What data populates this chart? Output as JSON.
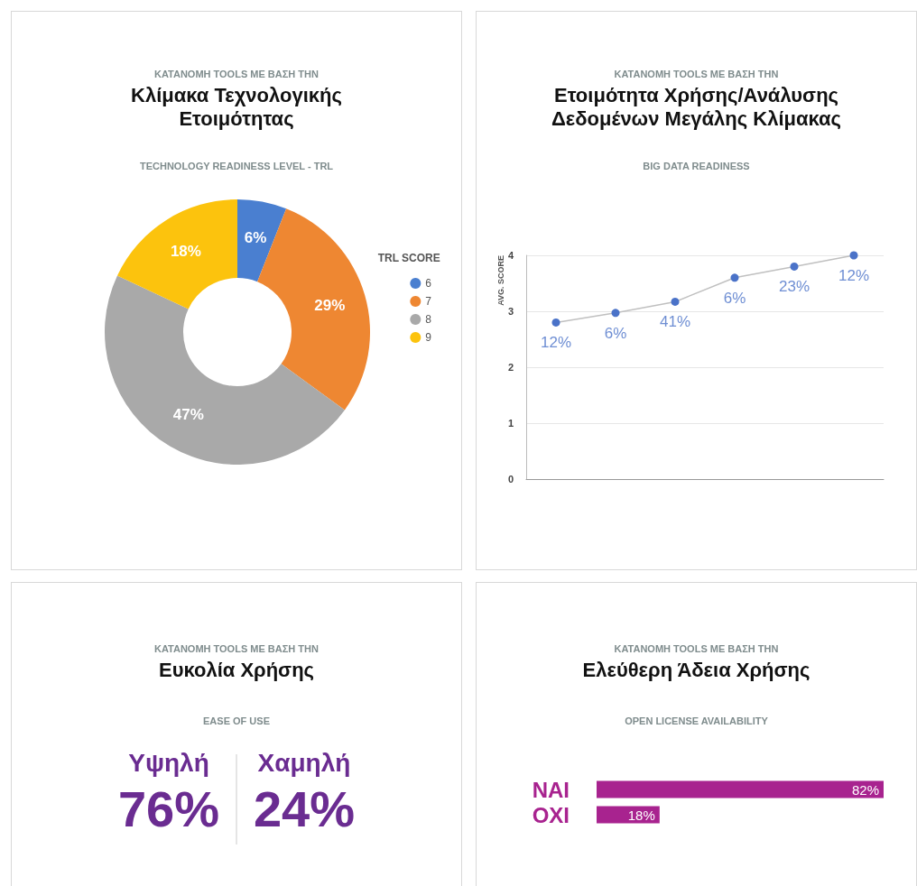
{
  "chart_data": [
    {
      "type": "donut",
      "annotations": [
        "ΚΑΤΑΝΟΜΗ TOOLS ΜΕ ΒΑΣΗ ΤΗΝ"
      ],
      "title": "Κλίμακα Τεχνολογικής Ετοιμότητας",
      "subtitle": "TECHNOLOGY READINESS LEVEL - TRL",
      "legend_title": "TRL SCORE",
      "legend": "right",
      "categories": [
        "6",
        "7",
        "8",
        "9"
      ],
      "values": [
        6,
        29,
        47,
        18
      ],
      "value_labels": [
        "6%",
        "29%",
        "47%",
        "18%"
      ],
      "colors": [
        "#4a7fd0",
        "#ee8732",
        "#a9a9a9",
        "#fcc30d"
      ]
    },
    {
      "type": "line",
      "annotations": [
        "ΚΑΤΑΝΟΜΗ TOOLS ΜΕ ΒΑΣΗ ΤΗΝ",
        {
          "text": "12%",
          "y": 2.8
        },
        {
          "text": "6%",
          "y": 2.97
        },
        {
          "text": "41%",
          "y": 3.17
        },
        {
          "text": "6%",
          "y": 3.6
        },
        {
          "text": "23%",
          "y": 3.8
        },
        {
          "text": "12%",
          "y": 4.0
        }
      ],
      "title": "Ετοιμότητα Χρήσης/Ανάλυσης Δεδομένων Μεγάλης Κλίμακας",
      "subtitle": "BIG DATA READINESS",
      "ylabel": "AVG. SCORE",
      "categories": [
        null,
        null,
        null,
        null,
        null,
        null
      ],
      "series": [
        {
          "color": "#4a72c8",
          "values": [
            2.8,
            2.97,
            3.17,
            3.6,
            3.8,
            4.0
          ]
        }
      ],
      "ylim": [
        0,
        4
      ],
      "yticks": [
        0,
        1,
        2,
        3,
        4
      ],
      "grid": "y",
      "marker": "circle",
      "tick_labels": "y"
    },
    {
      "type": "other",
      "annotations": [
        "ΚΑΤΑΝΟΜΗ TOOLS ΜΕ ΒΑΣΗ ΤΗΝ"
      ],
      "title": "Ευκολία Χρήσης",
      "subtitle": "EASE OF USE",
      "categories": [
        "Υψηλή",
        "Χαμηλή"
      ],
      "values": [
        76,
        24
      ],
      "value_labels": [
        "76%",
        "24%"
      ]
    },
    {
      "type": "bar",
      "orientation": "horizontal",
      "annotations": [
        "ΚΑΤΑΝΟΜΗ TOOLS ΜΕ ΒΑΣΗ ΤΗΝ"
      ],
      "title": "Ελεύθερη Άδεια Χρήσης",
      "subtitle": "OPEN LICENSE AVAILABILITY",
      "categories": [
        "ΝΑΙ",
        "ΟΧΙ"
      ],
      "values": [
        82,
        18
      ],
      "value_labels": [
        "82%",
        "18%"
      ],
      "color": "#a8238f",
      "tick_labels": "y"
    }
  ]
}
